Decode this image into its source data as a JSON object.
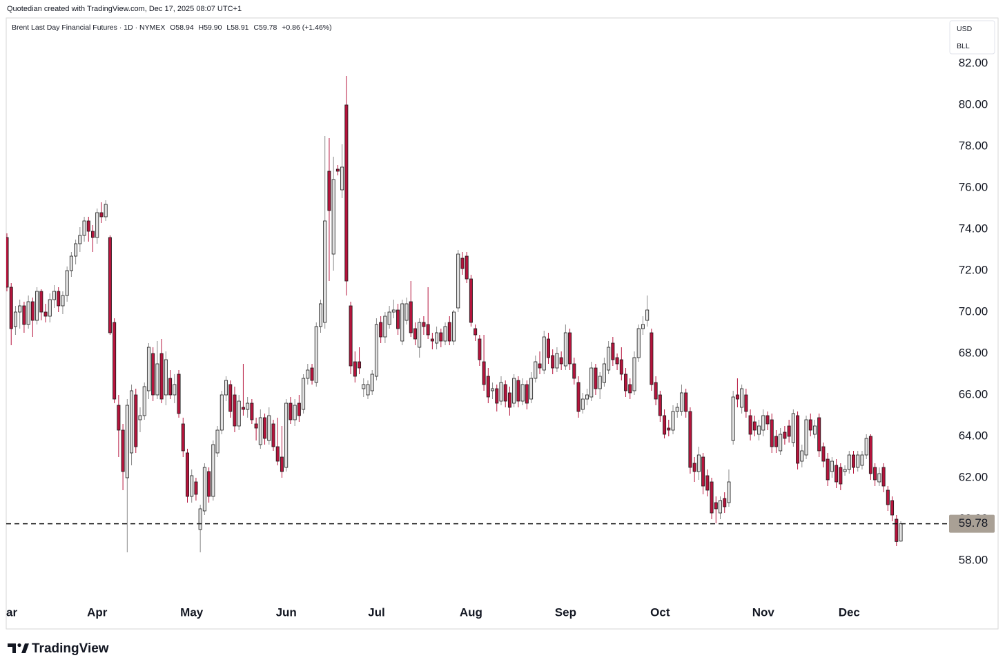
{
  "header": "Quotedian created with TradingView.com, Dec 17, 2025 08:07 UTC+1",
  "legend": {
    "symbol": "Brent Last Day Financial Futures · 1D · NYMEX",
    "items": [
      "O58.94",
      "H59.90",
      "L58.91",
      "C59.78"
    ],
    "change": "+0.86 (+1.46%)"
  },
  "currency": "USD",
  "unit": "BLL",
  "brand": "TradingView",
  "chart_data": {
    "type": "candlestick",
    "up_color": "#e2e2e2",
    "down_color": "#b5143c",
    "last_price": 59.78,
    "last_price_color": "#a9a095",
    "ylim": [
      54.7,
      84.2
    ],
    "yticks": [
      {
        "value": 58,
        "label": "58.00"
      },
      {
        "value": 60,
        "label": "60.00"
      },
      {
        "value": 62,
        "label": "62.00"
      },
      {
        "value": 64,
        "label": "64.00"
      },
      {
        "value": 66,
        "label": "66.00"
      },
      {
        "value": 68,
        "label": "68.00"
      },
      {
        "value": 70,
        "label": "70.00"
      },
      {
        "value": 72,
        "label": "72.00"
      },
      {
        "value": 74,
        "label": "74.00"
      },
      {
        "value": 76,
        "label": "76.00"
      },
      {
        "value": 78,
        "label": "78.00"
      },
      {
        "value": 80,
        "label": "80.00"
      },
      {
        "value": 82,
        "label": "82.00"
      }
    ],
    "xlim": [
      0,
      208
    ],
    "xticks": [
      {
        "value": 0,
        "label": "Mar"
      },
      {
        "value": 21,
        "label": "Apr"
      },
      {
        "value": 43,
        "label": "May"
      },
      {
        "value": 65,
        "label": "Jun"
      },
      {
        "value": 86,
        "label": "Jul"
      },
      {
        "value": 108,
        "label": "Aug"
      },
      {
        "value": 130,
        "label": "Sep"
      },
      {
        "value": 152,
        "label": "Oct"
      },
      {
        "value": 176,
        "label": "Nov"
      },
      {
        "value": 196,
        "label": "Dec"
      }
    ],
    "candles": [
      [
        73.6,
        73.8,
        71.0,
        71.2
      ],
      [
        71.2,
        71.4,
        68.4,
        69.2
      ],
      [
        69.3,
        70.3,
        68.9,
        70.0
      ],
      [
        70.0,
        70.6,
        69.2,
        70.3
      ],
      [
        70.3,
        70.5,
        69.0,
        69.4
      ],
      [
        69.4,
        70.8,
        69.2,
        70.5
      ],
      [
        70.5,
        70.7,
        68.8,
        69.6
      ],
      [
        69.6,
        71.2,
        69.4,
        71.0
      ],
      [
        71.0,
        71.1,
        69.6,
        70.0
      ],
      [
        70.0,
        70.4,
        69.5,
        69.8
      ],
      [
        69.8,
        70.9,
        69.5,
        70.6
      ],
      [
        70.6,
        71.3,
        70.2,
        71.0
      ],
      [
        71.0,
        71.2,
        70.0,
        70.3
      ],
      [
        70.3,
        71.0,
        69.9,
        70.8
      ],
      [
        70.8,
        72.2,
        70.5,
        72.0
      ],
      [
        72.0,
        72.9,
        71.7,
        72.7
      ],
      [
        72.7,
        73.5,
        72.3,
        73.3
      ],
      [
        73.3,
        74.1,
        72.9,
        73.7
      ],
      [
        73.7,
        74.6,
        73.4,
        74.4
      ],
      [
        74.4,
        74.6,
        73.4,
        73.9
      ],
      [
        73.9,
        74.2,
        72.9,
        73.6
      ],
      [
        73.6,
        75.0,
        73.3,
        74.8
      ],
      [
        74.8,
        75.3,
        74.3,
        74.6
      ],
      [
        74.6,
        75.4,
        74.4,
        75.2
      ],
      [
        73.6,
        73.7,
        68.9,
        69.0
      ],
      [
        69.5,
        69.7,
        65.6,
        65.8
      ],
      [
        65.5,
        66.0,
        63.0,
        64.3
      ],
      [
        64.3,
        64.6,
        61.4,
        62.3
      ],
      [
        62.0,
        65.8,
        58.4,
        65.5
      ],
      [
        63.2,
        66.5,
        62.6,
        66.2
      ],
      [
        66.0,
        66.3,
        63.2,
        63.5
      ],
      [
        64.8,
        65.4,
        64.2,
        65.0
      ],
      [
        65.0,
        66.6,
        64.8,
        66.4
      ],
      [
        66.2,
        68.5,
        65.8,
        68.3
      ],
      [
        68.0,
        68.3,
        65.7,
        66.0
      ],
      [
        66.0,
        68.6,
        65.8,
        67.5
      ],
      [
        68.0,
        68.7,
        65.6,
        65.8
      ],
      [
        66.0,
        68.1,
        65.5,
        67.7
      ],
      [
        66.8,
        67.2,
        65.8,
        66.0
      ],
      [
        66.0,
        67.0,
        65.6,
        66.5
      ],
      [
        67.0,
        67.2,
        64.9,
        65.1
      ],
      [
        64.6,
        64.9,
        63.0,
        63.3
      ],
      [
        63.2,
        63.4,
        60.8,
        61.1
      ],
      [
        61.1,
        62.4,
        60.8,
        62.1
      ],
      [
        61.8,
        62.0,
        60.9,
        61.2
      ],
      [
        59.5,
        60.7,
        58.4,
        60.5
      ],
      [
        60.4,
        62.7,
        60.2,
        62.5
      ],
      [
        62.3,
        62.5,
        60.8,
        61.1
      ],
      [
        61.1,
        63.8,
        60.9,
        63.6
      ],
      [
        63.2,
        64.5,
        63.0,
        64.3
      ],
      [
        64.3,
        66.2,
        64.1,
        66.0
      ],
      [
        66.0,
        66.9,
        65.7,
        66.7
      ],
      [
        66.5,
        66.7,
        64.9,
        65.2
      ],
      [
        66.0,
        66.4,
        64.2,
        64.5
      ],
      [
        64.5,
        66.0,
        64.3,
        65.7
      ],
      [
        65.4,
        67.5,
        65.0,
        65.3
      ],
      [
        65.3,
        65.9,
        64.9,
        65.6
      ],
      [
        65.6,
        65.8,
        64.6,
        64.8
      ],
      [
        64.6,
        64.9,
        63.8,
        64.4
      ],
      [
        63.6,
        65.3,
        63.4,
        64.9
      ],
      [
        64.9,
        65.1,
        63.6,
        63.9
      ],
      [
        63.8,
        65.4,
        63.6,
        65.0
      ],
      [
        64.6,
        64.8,
        63.3,
        63.5
      ],
      [
        63.5,
        64.9,
        62.6,
        62.8
      ],
      [
        63.0,
        64.5,
        62.0,
        62.3
      ],
      [
        62.5,
        65.8,
        62.3,
        65.6
      ],
      [
        65.6,
        65.9,
        64.6,
        64.8
      ],
      [
        64.8,
        65.8,
        64.5,
        65.5
      ],
      [
        65.6,
        66.0,
        64.7,
        65.0
      ],
      [
        65.3,
        67.0,
        65.1,
        66.8
      ],
      [
        66.8,
        67.5,
        66.5,
        67.2
      ],
      [
        67.3,
        67.5,
        66.5,
        66.7
      ],
      [
        66.6,
        69.5,
        66.4,
        69.3
      ],
      [
        69.3,
        70.6,
        69.0,
        70.4
      ],
      [
        69.5,
        78.5,
        69.2,
        74.4
      ],
      [
        76.8,
        78.4,
        71.5,
        74.9
      ],
      [
        72.8,
        77.5,
        72.0,
        76.4
      ],
      [
        76.9,
        77.1,
        76.6,
        76.8
      ],
      [
        75.9,
        78.1,
        75.5,
        77.0
      ],
      [
        80.0,
        81.4,
        70.8,
        71.5
      ],
      [
        70.3,
        70.5,
        67.0,
        67.4
      ],
      [
        67.6,
        68.1,
        66.6,
        66.9
      ],
      [
        67.6,
        68.3,
        67.0,
        67.3
      ],
      [
        66.3,
        66.8,
        65.9,
        66.5
      ],
      [
        66.0,
        66.7,
        65.8,
        66.5
      ],
      [
        66.2,
        67.2,
        66.0,
        67.0
      ],
      [
        66.9,
        69.7,
        66.7,
        69.4
      ],
      [
        69.5,
        69.8,
        68.5,
        68.8
      ],
      [
        68.8,
        70.0,
        68.5,
        69.8
      ],
      [
        69.4,
        70.3,
        69.2,
        70.0
      ],
      [
        70.0,
        70.6,
        69.7,
        70.1
      ],
      [
        70.1,
        70.4,
        68.9,
        69.2
      ],
      [
        68.6,
        70.6,
        68.4,
        70.4
      ],
      [
        69.6,
        70.7,
        69.4,
        70.4
      ],
      [
        70.5,
        71.5,
        68.8,
        69.0
      ],
      [
        69.2,
        69.5,
        68.4,
        68.7
      ],
      [
        68.3,
        69.7,
        67.8,
        69.5
      ],
      [
        69.5,
        69.8,
        68.9,
        69.3
      ],
      [
        69.4,
        71.2,
        68.7,
        68.9
      ],
      [
        68.7,
        69.0,
        68.2,
        68.6
      ],
      [
        68.5,
        69.3,
        68.2,
        69.0
      ],
      [
        69.0,
        69.2,
        68.3,
        68.6
      ],
      [
        68.6,
        69.5,
        68.4,
        69.3
      ],
      [
        69.5,
        69.8,
        68.4,
        68.6
      ],
      [
        68.6,
        70.1,
        68.4,
        70.0
      ],
      [
        70.2,
        73.0,
        70.0,
        72.8
      ],
      [
        72.6,
        72.9,
        71.8,
        72.1
      ],
      [
        72.7,
        72.9,
        71.4,
        71.6
      ],
      [
        71.6,
        71.8,
        69.3,
        69.5
      ],
      [
        69.2,
        69.4,
        68.6,
        68.9
      ],
      [
        68.7,
        68.9,
        67.4,
        67.7
      ],
      [
        67.6,
        68.9,
        66.2,
        66.5
      ],
      [
        66.9,
        67.3,
        65.6,
        65.9
      ],
      [
        66.2,
        66.6,
        65.8,
        66.3
      ],
      [
        66.3,
        66.5,
        65.2,
        65.6
      ],
      [
        65.7,
        66.9,
        65.5,
        66.6
      ],
      [
        66.5,
        66.7,
        65.4,
        65.7
      ],
      [
        66.1,
        66.4,
        65.0,
        65.4
      ],
      [
        65.6,
        67.0,
        65.4,
        66.8
      ],
      [
        66.7,
        66.9,
        65.4,
        65.7
      ],
      [
        65.7,
        66.8,
        65.5,
        66.5
      ],
      [
        66.5,
        66.7,
        65.3,
        65.6
      ],
      [
        65.8,
        67.1,
        65.6,
        66.8
      ],
      [
        66.8,
        67.9,
        66.6,
        67.6
      ],
      [
        67.5,
        68.1,
        67.0,
        67.3
      ],
      [
        67.2,
        69.1,
        67.0,
        68.8
      ],
      [
        68.7,
        69.0,
        67.5,
        67.8
      ],
      [
        67.9,
        68.2,
        67.0,
        67.3
      ],
      [
        67.3,
        68.3,
        67.1,
        68.0
      ],
      [
        67.8,
        68.1,
        67.2,
        67.5
      ],
      [
        67.4,
        69.4,
        67.2,
        69.0
      ],
      [
        69.0,
        69.2,
        67.2,
        67.5
      ],
      [
        67.5,
        67.8,
        66.5,
        66.8
      ],
      [
        66.6,
        66.9,
        64.9,
        65.2
      ],
      [
        65.3,
        66.1,
        65.1,
        65.8
      ],
      [
        65.8,
        66.3,
        65.5,
        66.0
      ],
      [
        65.9,
        67.6,
        65.7,
        67.3
      ],
      [
        67.3,
        67.5,
        66.0,
        66.3
      ],
      [
        66.3,
        67.1,
        65.8,
        66.9
      ],
      [
        66.6,
        67.8,
        66.4,
        67.5
      ],
      [
        67.2,
        68.6,
        67.0,
        68.3
      ],
      [
        68.5,
        68.8,
        67.4,
        67.7
      ],
      [
        67.8,
        68.0,
        67.2,
        67.5
      ],
      [
        67.7,
        68.3,
        66.7,
        67.0
      ],
      [
        67.0,
        67.3,
        65.9,
        66.2
      ],
      [
        66.5,
        66.8,
        65.8,
        66.1
      ],
      [
        66.2,
        68.1,
        66.0,
        67.8
      ],
      [
        67.8,
        69.4,
        67.6,
        69.2
      ],
      [
        69.2,
        69.8,
        68.9,
        69.4
      ],
      [
        69.6,
        70.8,
        69.3,
        70.1
      ],
      [
        69.0,
        69.2,
        66.2,
        66.5
      ],
      [
        66.6,
        66.9,
        65.5,
        65.8
      ],
      [
        66.0,
        66.2,
        64.7,
        65.0
      ],
      [
        65.0,
        65.3,
        63.9,
        64.1
      ],
      [
        64.4,
        64.8,
        64.0,
        64.3
      ],
      [
        64.3,
        65.5,
        64.1,
        65.2
      ],
      [
        65.2,
        65.6,
        64.9,
        65.4
      ],
      [
        65.2,
        66.5,
        65.0,
        66.1
      ],
      [
        66.1,
        66.3,
        64.9,
        65.2
      ],
      [
        65.2,
        65.4,
        62.2,
        62.5
      ],
      [
        62.7,
        63.0,
        61.8,
        62.3
      ],
      [
        62.3,
        63.5,
        61.9,
        63.1
      ],
      [
        63.0,
        63.2,
        61.2,
        61.6
      ],
      [
        62.1,
        62.4,
        61.1,
        61.4
      ],
      [
        61.8,
        62.0,
        60.0,
        60.3
      ],
      [
        60.8,
        61.1,
        59.8,
        60.5
      ],
      [
        60.3,
        61.1,
        60.0,
        60.9
      ],
      [
        61.0,
        61.3,
        60.3,
        60.6
      ],
      [
        60.8,
        62.4,
        60.6,
        61.8
      ],
      [
        63.8,
        66.2,
        63.6,
        65.9
      ],
      [
        66.0,
        66.8,
        65.4,
        65.8
      ],
      [
        65.4,
        66.5,
        65.1,
        66.3
      ],
      [
        66.0,
        66.3,
        64.9,
        65.2
      ],
      [
        65.0,
        65.3,
        63.8,
        64.1
      ],
      [
        64.7,
        65.0,
        64.0,
        64.3
      ],
      [
        64.1,
        64.8,
        63.8,
        64.5
      ],
      [
        64.3,
        65.3,
        64.0,
        65.0
      ],
      [
        65.0,
        65.2,
        64.3,
        64.6
      ],
      [
        64.8,
        65.1,
        63.2,
        63.5
      ],
      [
        64.0,
        64.3,
        63.2,
        63.5
      ],
      [
        63.3,
        64.4,
        63.1,
        64.1
      ],
      [
        64.2,
        64.5,
        63.6,
        63.9
      ],
      [
        64.5,
        64.8,
        63.7,
        64.0
      ],
      [
        63.7,
        65.3,
        63.5,
        65.1
      ],
      [
        65.0,
        65.2,
        62.4,
        62.7
      ],
      [
        62.8,
        63.6,
        62.5,
        63.3
      ],
      [
        63.1,
        65.0,
        62.9,
        64.8
      ],
      [
        64.8,
        65.1,
        64.0,
        64.3
      ],
      [
        64.1,
        64.8,
        63.9,
        64.5
      ],
      [
        64.9,
        65.1,
        63.0,
        63.3
      ],
      [
        63.5,
        63.7,
        62.5,
        62.8
      ],
      [
        62.9,
        63.2,
        61.6,
        61.9
      ],
      [
        62.3,
        63.0,
        62.0,
        62.8
      ],
      [
        62.6,
        62.9,
        61.5,
        61.8
      ],
      [
        62.5,
        62.7,
        61.4,
        61.7
      ],
      [
        62.3,
        62.6,
        62.1,
        62.4
      ],
      [
        62.4,
        63.3,
        62.2,
        63.1
      ],
      [
        63.1,
        63.3,
        62.2,
        62.5
      ],
      [
        62.5,
        63.3,
        62.3,
        63.1
      ],
      [
        62.6,
        63.3,
        62.4,
        63.1
      ],
      [
        63.1,
        64.1,
        62.9,
        63.9
      ],
      [
        64.0,
        64.1,
        61.9,
        62.2
      ],
      [
        62.5,
        62.7,
        61.6,
        61.9
      ],
      [
        61.8,
        62.5,
        61.6,
        62.2
      ],
      [
        62.5,
        62.7,
        61.3,
        61.6
      ],
      [
        61.4,
        61.6,
        60.4,
        60.7
      ],
      [
        60.9,
        61.1,
        59.9,
        60.2
      ],
      [
        60.0,
        60.2,
        58.7,
        58.92
      ],
      [
        58.94,
        59.9,
        58.91,
        59.78
      ]
    ]
  }
}
